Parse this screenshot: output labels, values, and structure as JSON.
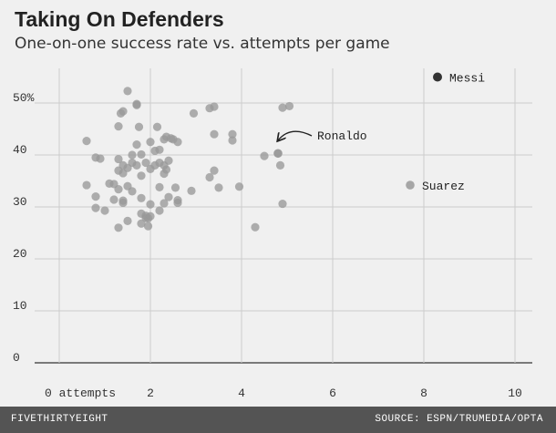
{
  "chart_data": {
    "type": "scatter",
    "title": "Taking On Defenders",
    "subtitle": "One-on-one success rate vs. attempts per game",
    "xlabel": "",
    "ylabel": "",
    "xlim": [
      -0.5,
      10.3
    ],
    "ylim": [
      0,
      56
    ],
    "x_ticks": [
      {
        "value": 0,
        "label": "0 attempts"
      },
      {
        "value": 2,
        "label": "2"
      },
      {
        "value": 4,
        "label": "4"
      },
      {
        "value": 6,
        "label": "6"
      },
      {
        "value": 8,
        "label": "8"
      },
      {
        "value": 10,
        "label": "10"
      }
    ],
    "y_ticks": [
      {
        "value": 0,
        "label": "0"
      },
      {
        "value": 10,
        "label": "10"
      },
      {
        "value": 20,
        "label": "20"
      },
      {
        "value": 30,
        "label": "30"
      },
      {
        "value": 40,
        "label": "40"
      },
      {
        "value": 50,
        "label": "50%"
      }
    ],
    "grid": true,
    "colors": {
      "point": "#999999",
      "highlight": "#333333",
      "axis": "#333333",
      "grid": "#cccccc"
    },
    "highlights": [
      {
        "name": "Messi",
        "x": 8.3,
        "y": 55.0
      },
      {
        "name": "Ronaldo",
        "x": 4.8,
        "y": 40.3
      },
      {
        "name": "Suarez",
        "x": 7.7,
        "y": 34.2
      }
    ],
    "points": [
      [
        0.6,
        42.7
      ],
      [
        0.6,
        34.2
      ],
      [
        0.8,
        32.0
      ],
      [
        0.8,
        29.8
      ],
      [
        0.8,
        39.5
      ],
      [
        0.9,
        39.3
      ],
      [
        1.0,
        29.3
      ],
      [
        1.1,
        34.5
      ],
      [
        1.2,
        34.4
      ],
      [
        1.2,
        31.4
      ],
      [
        1.3,
        37.0
      ],
      [
        1.3,
        39.2
      ],
      [
        1.3,
        33.4
      ],
      [
        1.3,
        26.0
      ],
      [
        1.3,
        45.5
      ],
      [
        1.35,
        48.0
      ],
      [
        1.4,
        48.4
      ],
      [
        1.4,
        38.0
      ],
      [
        1.4,
        36.5
      ],
      [
        1.4,
        31.2
      ],
      [
        1.4,
        30.8
      ],
      [
        1.5,
        34.0
      ],
      [
        1.5,
        37.5
      ],
      [
        1.5,
        27.3
      ],
      [
        1.5,
        52.3
      ],
      [
        1.6,
        33.0
      ],
      [
        1.6,
        38.5
      ],
      [
        1.6,
        40.0
      ],
      [
        1.7,
        42.0
      ],
      [
        1.7,
        38.0
      ],
      [
        1.7,
        49.6
      ],
      [
        1.7,
        49.8
      ],
      [
        1.75,
        45.4
      ],
      [
        1.8,
        40.1
      ],
      [
        1.8,
        36.0
      ],
      [
        1.8,
        31.7
      ],
      [
        1.8,
        28.7
      ],
      [
        1.8,
        26.8
      ],
      [
        1.9,
        38.5
      ],
      [
        1.9,
        28.3
      ],
      [
        1.9,
        27.9
      ],
      [
        1.95,
        27.8
      ],
      [
        1.95,
        26.3
      ],
      [
        2.0,
        42.5
      ],
      [
        2.0,
        37.3
      ],
      [
        2.0,
        30.5
      ],
      [
        2.0,
        28.2
      ],
      [
        2.1,
        40.8
      ],
      [
        2.1,
        38.0
      ],
      [
        2.15,
        45.4
      ],
      [
        2.2,
        33.8
      ],
      [
        2.2,
        29.3
      ],
      [
        2.2,
        41.0
      ],
      [
        2.2,
        38.5
      ],
      [
        2.3,
        43.0
      ],
      [
        2.3,
        38.0
      ],
      [
        2.3,
        36.4
      ],
      [
        2.3,
        30.7
      ],
      [
        2.35,
        43.5
      ],
      [
        2.35,
        37.2
      ],
      [
        2.4,
        38.9
      ],
      [
        2.4,
        31.9
      ],
      [
        2.45,
        43.2
      ],
      [
        2.5,
        43.0
      ],
      [
        2.55,
        33.7
      ],
      [
        2.6,
        42.5
      ],
      [
        2.6,
        31.3
      ],
      [
        2.6,
        30.8
      ],
      [
        2.9,
        33.1
      ],
      [
        2.95,
        48.0
      ],
      [
        3.3,
        35.7
      ],
      [
        3.3,
        49.0
      ],
      [
        3.4,
        49.3
      ],
      [
        3.4,
        44.0
      ],
      [
        3.4,
        37.0
      ],
      [
        3.5,
        33.7
      ],
      [
        3.8,
        44.0
      ],
      [
        3.8,
        42.8
      ],
      [
        3.95,
        33.9
      ],
      [
        4.3,
        26.1
      ],
      [
        4.5,
        39.8
      ],
      [
        4.8,
        40.3
      ],
      [
        4.85,
        38.0
      ],
      [
        4.9,
        49.1
      ],
      [
        4.9,
        30.6
      ],
      [
        5.05,
        49.4
      ]
    ],
    "annotation": {
      "target": "Ronaldo",
      "arrow": true
    }
  },
  "footer": {
    "brand": "FIVETHIRTYEIGHT",
    "source": "SOURCE: ESPN/TRUMEDIA/OPTA"
  }
}
